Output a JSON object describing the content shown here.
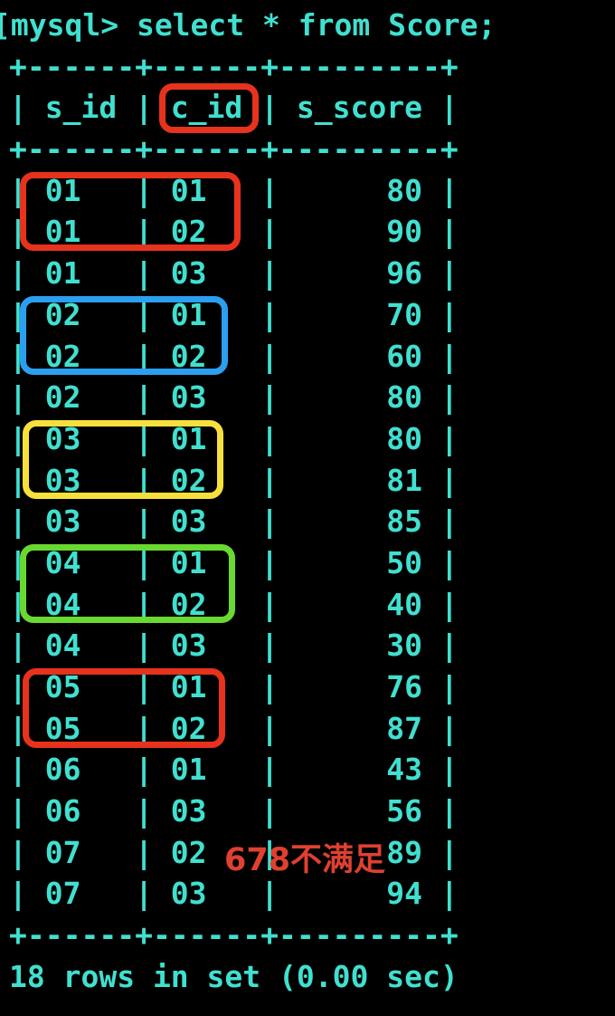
{
  "colors": {
    "background": "#000000",
    "terminal_text": "#40e0d0",
    "highlight_red": "#e7321d",
    "highlight_blue": "#2b9ff0",
    "highlight_yellow": "#f8e03c",
    "highlight_green": "#69d930",
    "note_red": "#e04030"
  },
  "terminal": {
    "prompt_bracket": "[",
    "command_line": "mysql> select * from Score;",
    "border_line": "+------+------+---------+",
    "footer_line": "18 rows in set (0.00 sec)"
  },
  "table": {
    "columns": [
      "s_id",
      "c_id",
      "s_score"
    ],
    "rows": [
      [
        "01",
        "01",
        "80"
      ],
      [
        "01",
        "02",
        "90"
      ],
      [
        "01",
        "03",
        "96"
      ],
      [
        "02",
        "01",
        "70"
      ],
      [
        "02",
        "02",
        "60"
      ],
      [
        "02",
        "03",
        "80"
      ],
      [
        "03",
        "01",
        "80"
      ],
      [
        "03",
        "02",
        "81"
      ],
      [
        "03",
        "03",
        "85"
      ],
      [
        "04",
        "01",
        "50"
      ],
      [
        "04",
        "02",
        "40"
      ],
      [
        "04",
        "03",
        "30"
      ],
      [
        "05",
        "01",
        "76"
      ],
      [
        "05",
        "02",
        "87"
      ],
      [
        "06",
        "01",
        "43"
      ],
      [
        "06",
        "03",
        "56"
      ],
      [
        "07",
        "02",
        "89"
      ],
      [
        "07",
        "03",
        "94"
      ]
    ]
  },
  "annotations": {
    "header_box": {
      "target": "c_id",
      "color_key": "highlight_red"
    },
    "row_boxes": [
      {
        "student": "01",
        "row_start": 1,
        "row_end": 2,
        "color_key": "highlight_red"
      },
      {
        "student": "02",
        "row_start": 4,
        "row_end": 5,
        "color_key": "highlight_blue"
      },
      {
        "student": "03",
        "row_start": 7,
        "row_end": 8,
        "color_key": "highlight_yellow"
      },
      {
        "student": "04",
        "row_start": 10,
        "row_end": 11,
        "color_key": "highlight_green"
      },
      {
        "student": "05",
        "row_start": 13,
        "row_end": 14,
        "color_key": "highlight_red"
      }
    ],
    "note": {
      "text": "678不满足",
      "color_key": "note_red"
    }
  }
}
